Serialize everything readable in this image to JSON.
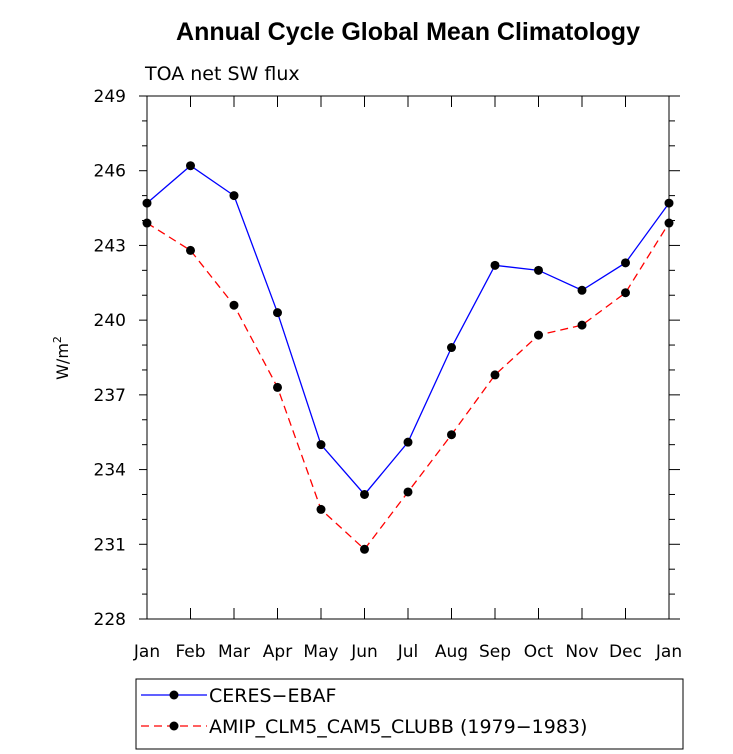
{
  "chart_data": {
    "type": "line",
    "title": "Annual Cycle Global Mean Climatology",
    "subtitle": "TOA net SW flux",
    "ylabel": "W/m",
    "ylabel_superscript": "2",
    "xlabel": "",
    "categories": [
      "Jan",
      "Feb",
      "Mar",
      "Apr",
      "May",
      "Jun",
      "Jul",
      "Aug",
      "Sep",
      "Oct",
      "Nov",
      "Dec",
      "Jan"
    ],
    "ylim": [
      228,
      249
    ],
    "yticks": [
      "228",
      "231",
      "234",
      "237",
      "240",
      "243",
      "246",
      "249"
    ],
    "series": [
      {
        "name": "CERES−EBAF",
        "color": "#0000ff",
        "line": "solid",
        "values": [
          244.7,
          246.2,
          245.0,
          240.3,
          235.0,
          233.0,
          235.1,
          238.9,
          242.2,
          242.0,
          241.2,
          242.3,
          244.7
        ]
      },
      {
        "name": "AMIP_CLM5_CAM5_CLUBB (1979−1983)",
        "color": "#ff0000",
        "line": "dashed",
        "values": [
          243.9,
          242.8,
          240.6,
          237.3,
          232.4,
          230.8,
          233.1,
          235.4,
          237.8,
          239.4,
          239.8,
          241.1,
          243.9
        ]
      }
    ],
    "legend_position": "bottom",
    "grid": false
  }
}
